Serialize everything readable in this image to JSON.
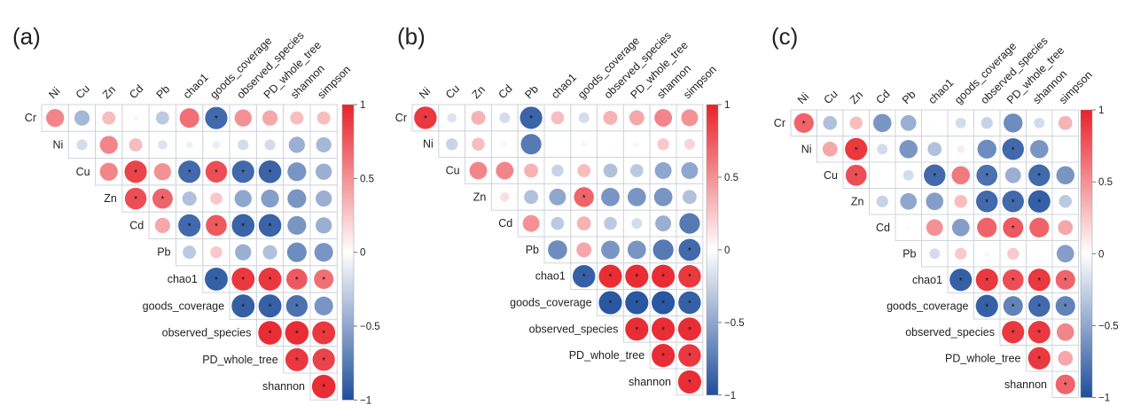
{
  "chart_data": [
    {
      "type": "heatmap",
      "subtype": "correlation-circle-upper-triangle",
      "panel_label": "(a)",
      "variables": [
        "Cr",
        "Ni",
        "Cu",
        "Zn",
        "Cd",
        "Pb",
        "chao1",
        "goods_coverage",
        "observed_species",
        "PD_whole_tree",
        "shannon",
        "simpson"
      ],
      "row_labels": [
        "Cr",
        "Ni",
        "Cu",
        "Zn",
        "Cd",
        "Pb",
        "chao1",
        "goods_coverage",
        "observed_species",
        "PD_whole_tree",
        "shannon"
      ],
      "col_labels": [
        "Ni",
        "Cu",
        "Zn",
        "Cd",
        "Pb",
        "chao1",
        "goods_coverage",
        "observed_species",
        "PD_whole_tree",
        "shannon",
        "simpson"
      ],
      "values": [
        [
          0.55,
          -0.4,
          0.3,
          0.05,
          -0.3,
          0.65,
          -0.85,
          0.5,
          0.4,
          0.3,
          0.3
        ],
        [
          -0.2,
          0.55,
          0.3,
          -0.15,
          -0.08,
          -0.1,
          -0.2,
          -0.2,
          -0.45,
          -0.4
        ],
        [
          0.55,
          0.85,
          0.5,
          -0.85,
          0.8,
          -0.85,
          -0.88,
          -0.6,
          -0.45
        ],
        [
          0.8,
          0.7,
          -0.35,
          0.25,
          -0.5,
          -0.55,
          -0.6,
          -0.45
        ],
        [
          0.4,
          -0.85,
          0.75,
          -0.88,
          -0.88,
          -0.6,
          -0.45
        ],
        [
          -0.3,
          0.25,
          -0.45,
          -0.35,
          -0.65,
          -0.6
        ],
        [
          -0.9,
          0.9,
          0.9,
          0.75,
          0.65
        ],
        [
          -0.9,
          -0.9,
          -0.8,
          -0.6
        ],
        [
          0.95,
          0.95,
          0.9
        ],
        [
          0.9,
          0.85
        ],
        [
          0.95
        ]
      ],
      "significant": [
        [
          0,
          0,
          0,
          0,
          0,
          0,
          1,
          0,
          0,
          0,
          0
        ],
        [
          0,
          0,
          0,
          0,
          0,
          0,
          0,
          0,
          0,
          0
        ],
        [
          0,
          1,
          0,
          1,
          1,
          1,
          1,
          0,
          0
        ],
        [
          1,
          1,
          0,
          0,
          0,
          0,
          0,
          0
        ],
        [
          0,
          1,
          1,
          1,
          1,
          0,
          0
        ],
        [
          0,
          0,
          0,
          0,
          0,
          0
        ],
        [
          1,
          1,
          1,
          1,
          1
        ],
        [
          1,
          1,
          1,
          0
        ],
        [
          1,
          1,
          1
        ],
        [
          1,
          1
        ],
        [
          1
        ]
      ],
      "colorbar": {
        "ticks": [
          "1",
          "0.5",
          "0",
          "-0.5",
          "-1"
        ],
        "range": [
          -1,
          1
        ]
      },
      "significance_marker": "*"
    },
    {
      "type": "heatmap",
      "subtype": "correlation-circle-upper-triangle",
      "panel_label": "(b)",
      "variables": [
        "Cr",
        "Ni",
        "Cu",
        "Zn",
        "Cd",
        "Pb",
        "chao1",
        "goods_coverage",
        "observed_species",
        "PD_whole_tree",
        "shannon",
        "simpson"
      ],
      "row_labels": [
        "Cr",
        "Ni",
        "Cu",
        "Zn",
        "Cd",
        "Pb",
        "chao1",
        "goods_coverage",
        "observed_species",
        "PD_whole_tree",
        "shannon"
      ],
      "col_labels": [
        "Ni",
        "Cu",
        "Zn",
        "Cd",
        "Pb",
        "chao1",
        "goods_coverage",
        "observed_species",
        "PD_whole_tree",
        "shannon",
        "simpson"
      ],
      "values": [
        [
          0.9,
          -0.15,
          0.35,
          -0.2,
          -0.88,
          0.3,
          -0.2,
          0.35,
          0.4,
          0.55,
          0.5
        ],
        [
          -0.25,
          0.3,
          0.05,
          -0.75,
          0.02,
          0.05,
          0.02,
          0.05,
          0.25,
          0.2
        ],
        [
          0.55,
          0.55,
          0.35,
          -0.25,
          0.3,
          -0.35,
          -0.3,
          -0.5,
          -0.5
        ],
        [
          0.15,
          -0.35,
          -0.5,
          0.7,
          -0.6,
          -0.6,
          -0.6,
          -0.35
        ],
        [
          0.5,
          -0.3,
          0.35,
          -0.3,
          -0.2,
          -0.45,
          -0.75
        ],
        [
          -0.65,
          0.4,
          -0.6,
          -0.6,
          -0.75,
          -0.85
        ],
        [
          -0.9,
          0.95,
          0.95,
          0.95,
          0.9
        ],
        [
          -0.95,
          -0.95,
          -0.95,
          -0.9
        ],
        [
          0.95,
          0.95,
          0.95
        ],
        [
          0.95,
          0.9
        ],
        [
          0.95
        ]
      ],
      "significant": [
        [
          1,
          0,
          0,
          0,
          1,
          0,
          0,
          0,
          0,
          0,
          0
        ],
        [
          0,
          0,
          0,
          0,
          0,
          0,
          0,
          0,
          0,
          0
        ],
        [
          0,
          0,
          0,
          0,
          0,
          0,
          0,
          0,
          0
        ],
        [
          0,
          0,
          0,
          1,
          0,
          0,
          0,
          0
        ],
        [
          0,
          0,
          0,
          0,
          0,
          0,
          0
        ],
        [
          0,
          0,
          0,
          0,
          0,
          1
        ],
        [
          1,
          1,
          1,
          1,
          1
        ],
        [
          1,
          1,
          1,
          1
        ],
        [
          1,
          1,
          1
        ],
        [
          1,
          1
        ],
        [
          1
        ]
      ],
      "colorbar": {
        "ticks": [
          "1",
          "0.5",
          "0",
          "-0.5",
          "-1"
        ],
        "range": [
          -1,
          1
        ]
      },
      "significance_marker": "*"
    },
    {
      "type": "heatmap",
      "subtype": "correlation-circle-upper-triangle",
      "panel_label": "(c)",
      "variables": [
        "Cr",
        "Ni",
        "Cu",
        "Zn",
        "Cd",
        "Pb",
        "chao1",
        "goods_coverage",
        "observed_species",
        "PD_whole_tree",
        "shannon",
        "simpson"
      ],
      "row_labels": [
        "Cr",
        "Ni",
        "Cu",
        "Zn",
        "Cd",
        "Pb",
        "chao1",
        "goods_coverage",
        "observed_species",
        "PD_whole_tree",
        "shannon"
      ],
      "col_labels": [
        "Ni",
        "Cu",
        "Zn",
        "Cd",
        "Pb",
        "chao1",
        "goods_coverage",
        "observed_species",
        "PD_whole_tree",
        "shannon",
        "simpson"
      ],
      "values": [
        [
          0.7,
          -0.35,
          0.3,
          -0.6,
          -0.45,
          0.02,
          -0.2,
          -0.25,
          -0.65,
          -0.2,
          0.35
        ],
        [
          0.4,
          0.9,
          -0.2,
          -0.6,
          -0.35,
          0.1,
          -0.65,
          -0.85,
          -0.6,
          0.0
        ],
        [
          0.8,
          0.0,
          -0.2,
          -0.85,
          0.6,
          -0.8,
          -0.45,
          -0.85,
          -0.6
        ],
        [
          -0.25,
          -0.5,
          -0.55,
          0.3,
          -0.85,
          -0.85,
          -0.9,
          -0.3
        ],
        [
          0.03,
          0.5,
          -0.55,
          0.7,
          0.75,
          0.7,
          0.4
        ],
        [
          -0.2,
          0.25,
          0.05,
          0.25,
          0.02,
          -0.55
        ],
        [
          -0.9,
          0.9,
          0.8,
          0.9,
          0.7
        ],
        [
          -0.9,
          -0.7,
          -0.85,
          -0.7
        ],
        [
          0.9,
          0.9,
          0.55
        ],
        [
          0.9,
          0.4
        ],
        [
          0.7
        ]
      ],
      "significant": [
        [
          1,
          0,
          0,
          0,
          0,
          0,
          0,
          0,
          0,
          0,
          0
        ],
        [
          0,
          1,
          0,
          0,
          0,
          0,
          0,
          1,
          0,
          0
        ],
        [
          1,
          0,
          0,
          1,
          0,
          1,
          0,
          1,
          0
        ],
        [
          0,
          0,
          0,
          0,
          1,
          1,
          1,
          0
        ],
        [
          0,
          0,
          0,
          0,
          1,
          0,
          0
        ],
        [
          0,
          0,
          0,
          0,
          0,
          0
        ],
        [
          1,
          1,
          1,
          1,
          1
        ],
        [
          1,
          1,
          1,
          1
        ],
        [
          1,
          1,
          0
        ],
        [
          1,
          0
        ],
        [
          1
        ]
      ],
      "colorbar": {
        "ticks": [
          "1",
          "0.5",
          "0",
          "-0.5",
          "-1"
        ],
        "range": [
          -1,
          1
        ]
      },
      "significance_marker": "*"
    }
  ],
  "colors": {
    "positive": "#e8222a",
    "neutral": "#ffffff",
    "negative": "#1f4e9c",
    "grid": "#cfd4dc"
  }
}
